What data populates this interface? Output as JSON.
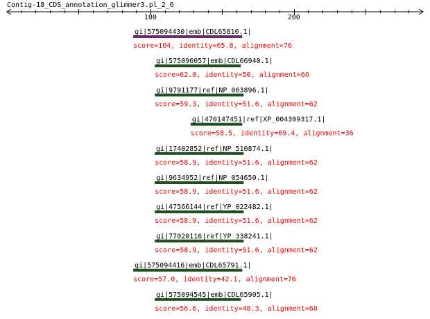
{
  "title": "Contig-18_CDS_annotation_glimmer3.pl_2_6",
  "axis": {
    "range": [
      0,
      290
    ],
    "major_ticks": [
      100,
      200
    ],
    "arrows": "both"
  },
  "colors": {
    "bar": "#1f4f1f",
    "bar_highlight": "#6a2a6a",
    "name_text": "#000000",
    "score_text": "#ee0000",
    "axis": "#000000"
  },
  "chart_data": {
    "type": "alignment-track",
    "title": "Contig-18_CDS_annotation_glimmer3.pl_2_6",
    "hits": [
      {
        "name": "gi|575094430|emb|CDL65810.1|",
        "start": 88,
        "end": 164,
        "score_text": "score=104, identity=65.8, alignment=76",
        "highlight": true
      },
      {
        "name": "gi|575096057|emb|CDL66940.1|",
        "start": 103,
        "end": 163,
        "score_text": "score=62.0, identity=50, alignment=60",
        "highlight": false
      },
      {
        "name": "gi|9791177|ref|NP_063896.1|",
        "start": 103,
        "end": 165,
        "score_text": "score=59.3, identity=51.6, alignment=62",
        "highlight": false
      },
      {
        "name": "gi|470147451|ref|XP_004309317.1|",
        "start": 128,
        "end": 164,
        "score_text": "score=58.5, identity=69.4, alignment=36",
        "highlight": false
      },
      {
        "name": "gi|17402852|ref|NP_510874.1|",
        "start": 103,
        "end": 165,
        "score_text": "score=58.9, identity=51.6, alignment=62",
        "highlight": false
      },
      {
        "name": "gi|9634952|ref|NP_054650.1|",
        "start": 103,
        "end": 165,
        "score_text": "score=58.9, identity=51.6, alignment=62",
        "highlight": false
      },
      {
        "name": "gi|47566144|ref|YP_022482.1|",
        "start": 103,
        "end": 165,
        "score_text": "score=58.9, identity=51.6, alignment=62",
        "highlight": false
      },
      {
        "name": "gi|77020116|ref|YP_338241.1|",
        "start": 103,
        "end": 165,
        "score_text": "score=58.9, identity=51.6, alignment=62",
        "highlight": false
      },
      {
        "name": "gi|575094416|emb|CDL65791.1|",
        "start": 88,
        "end": 164,
        "score_text": "score=57.0, identity=42.1, alignment=76",
        "highlight": false
      },
      {
        "name": "gi|575094545|emb|CDL65905.1|",
        "start": 103,
        "end": 163,
        "score_text": "score=56.6, identity=48.3, alignment=60",
        "highlight": false
      }
    ]
  }
}
